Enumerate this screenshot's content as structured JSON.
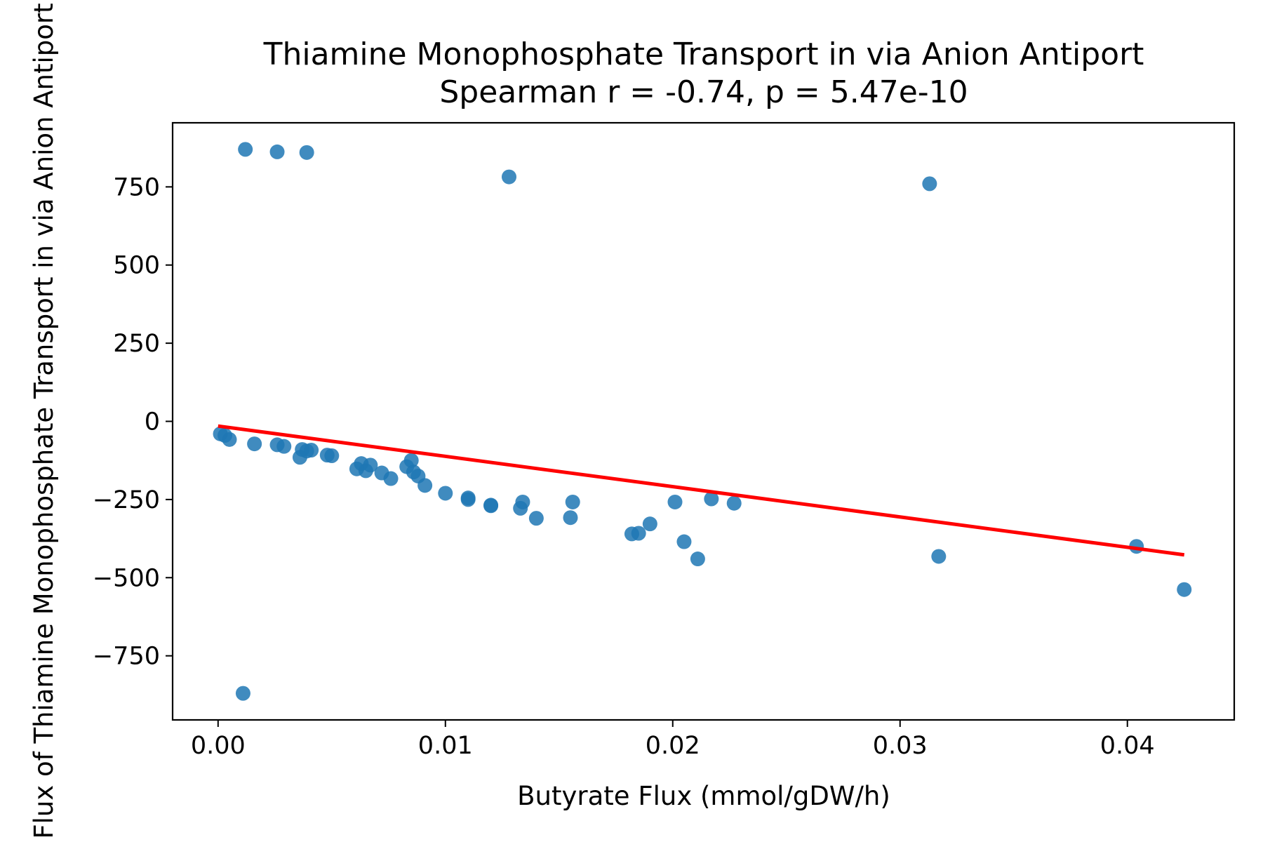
{
  "chart_data": {
    "type": "scatter",
    "title": "Thiamine Monophosphate Transport in via Anion Antiport",
    "subtitle": "Spearman r = -0.74, p = 5.47e-10",
    "xlabel": "Butyrate Flux (mmol/gDW/h)",
    "ylabel": "Flux of Thiamine Monophosphate Transport in via Anion Antiport",
    "xlim": [
      -0.002,
      0.0447
    ],
    "ylim": [
      -955,
      955
    ],
    "x_ticks": [
      0.0,
      0.01,
      0.02,
      0.03,
      0.04
    ],
    "x_tick_labels": [
      "0.00",
      "0.01",
      "0.02",
      "0.03",
      "0.04"
    ],
    "y_ticks": [
      750,
      500,
      250,
      0,
      -250,
      -500,
      -750
    ],
    "y_tick_labels": [
      "750",
      "500",
      "250",
      "0",
      "−250",
      "−500",
      "−750"
    ],
    "grid": false,
    "point_color": "#1f77b4",
    "fit_color": "#ff0000",
    "series": [
      {
        "x": [
          0.0001,
          0.0003,
          0.0005,
          0.0016,
          0.0026,
          0.0029,
          0.0036,
          0.0037,
          0.0039,
          0.0041,
          0.0048,
          0.005,
          0.0061,
          0.0063,
          0.0065,
          0.0067,
          0.0072,
          0.0076,
          0.0083,
          0.0085,
          0.0086,
          0.0088,
          0.0091,
          0.01,
          0.011,
          0.011,
          0.012,
          0.012,
          0.0133,
          0.0134,
          0.014,
          0.0155,
          0.0156,
          0.0182,
          0.0185,
          0.019,
          0.0201,
          0.0205,
          0.0211,
          0.0217,
          0.0227,
          0.0317,
          0.0404,
          0.0425,
          0.0012,
          0.0026,
          0.0039,
          0.0128,
          0.0313,
          0.0011
        ],
        "y": [
          -40,
          -45,
          -58,
          -72,
          -75,
          -80,
          -115,
          -90,
          -95,
          -92,
          -108,
          -110,
          -152,
          -135,
          -158,
          -140,
          -165,
          -183,
          -145,
          -125,
          -162,
          -175,
          -205,
          -230,
          -245,
          -250,
          -268,
          -270,
          -278,
          -258,
          -310,
          -308,
          -258,
          -360,
          -358,
          -328,
          -258,
          -385,
          -440,
          -248,
          -262,
          -432,
          -400,
          -538,
          870,
          862,
          860,
          782,
          760,
          -870
        ]
      }
    ],
    "fit_line": {
      "x": [
        0.0,
        0.0425
      ],
      "y": [
        -15,
        -427
      ]
    }
  }
}
